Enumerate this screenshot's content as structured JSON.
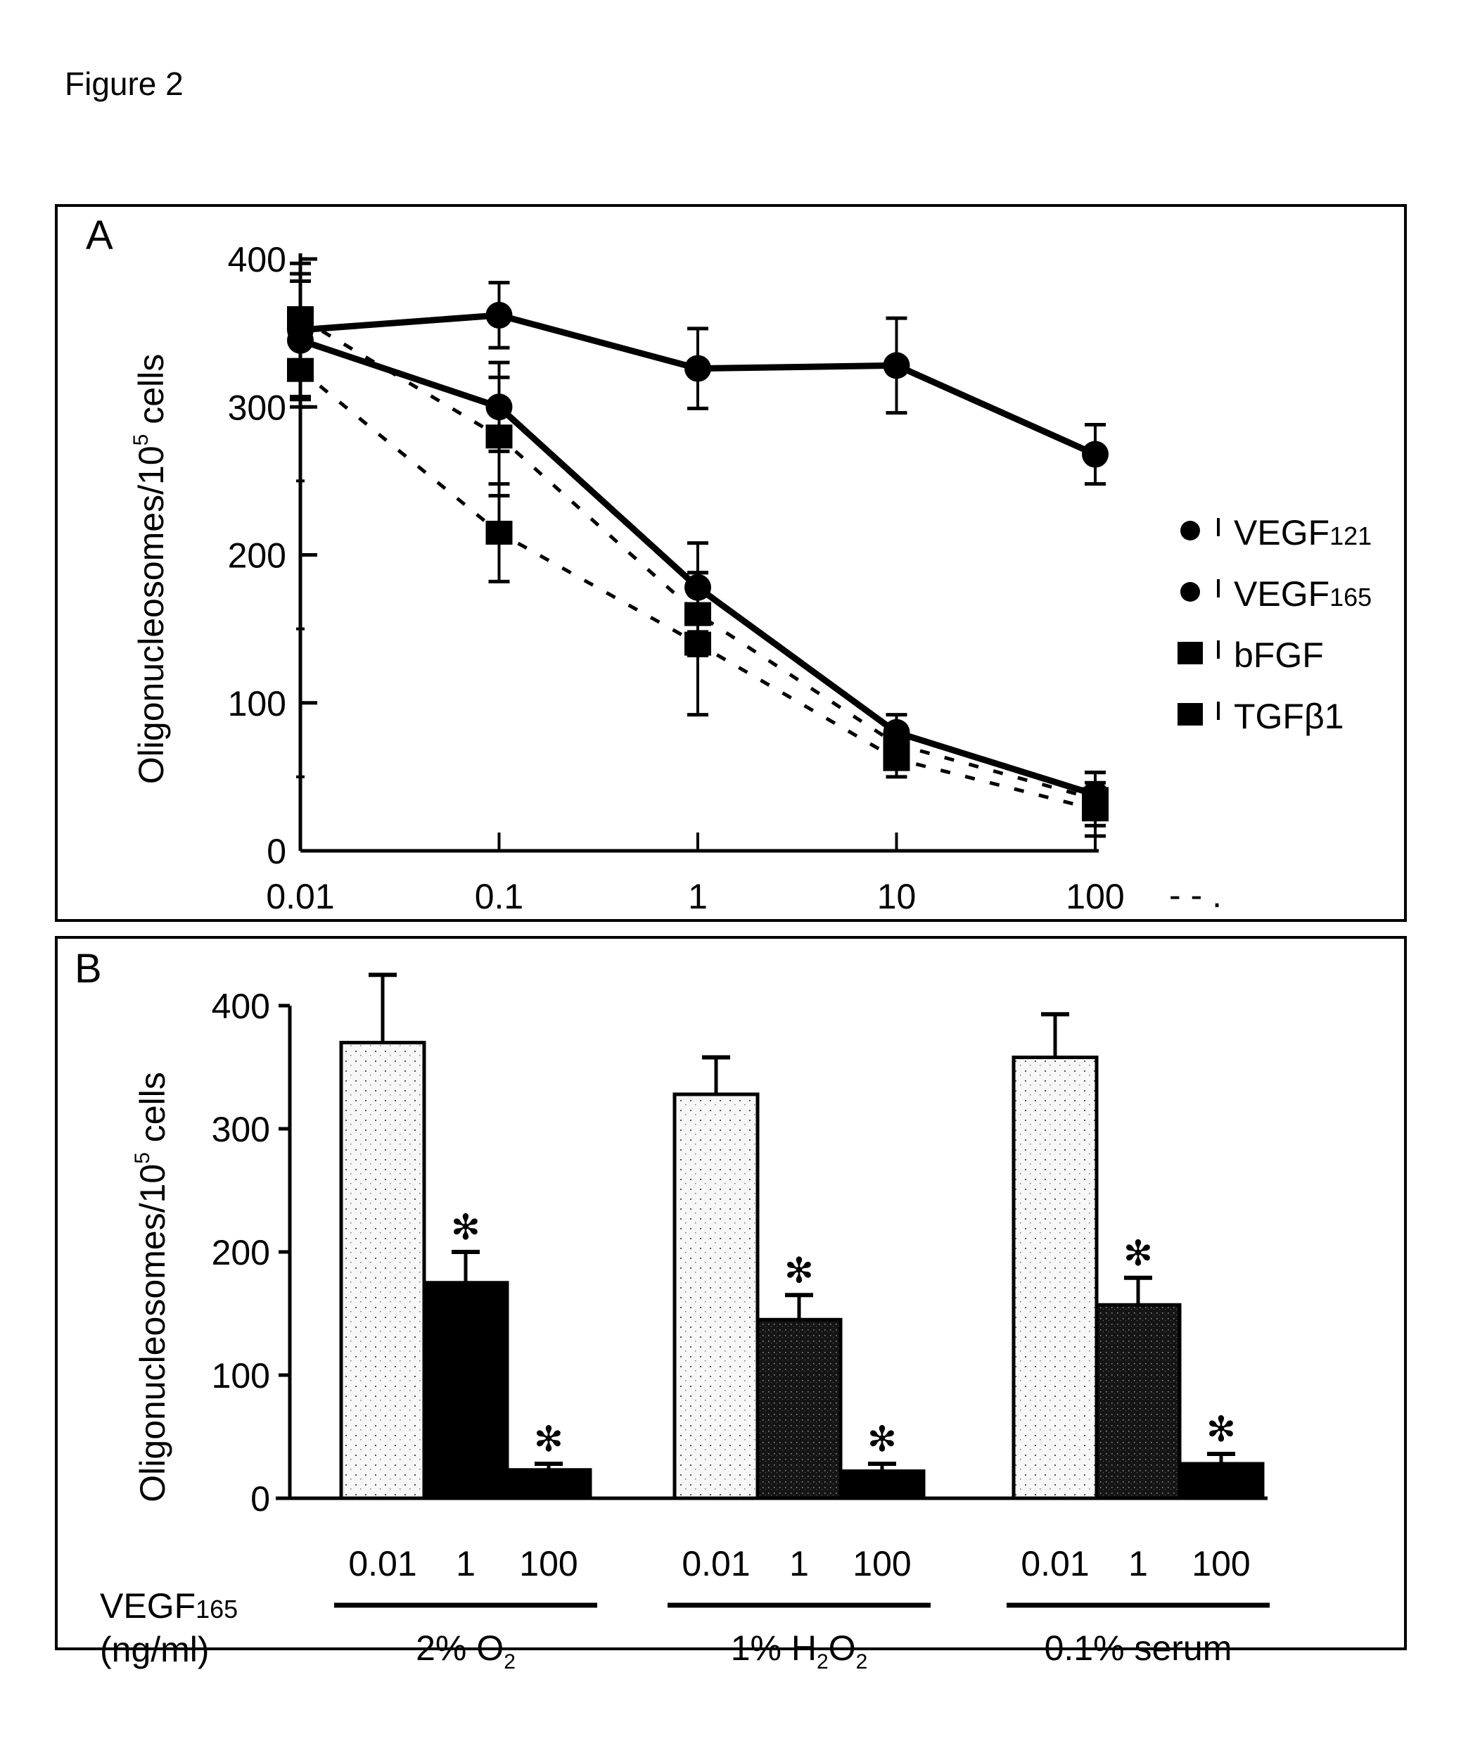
{
  "figure": {
    "title": "Figure 2"
  },
  "chart_data": [
    {
      "panel": "A",
      "type": "line",
      "title": "",
      "xlabel": "",
      "ylabel": "Oligonucleosomes/10^5 cells",
      "ylabel_parts": {
        "base": "Oligonucleosomes/10",
        "sup": "5",
        "tail": " cells"
      },
      "xscale": "log",
      "x": [
        0.01,
        0.1,
        1,
        10,
        100
      ],
      "x_tick_labels": [
        "0.01",
        "0.1",
        "1",
        "10",
        "100"
      ],
      "ylim": [
        0,
        400
      ],
      "y_ticks": [
        0,
        100,
        200,
        300,
        400
      ],
      "grid": false,
      "legend_position": "right",
      "series": [
        {
          "name": "VEGF121",
          "label_base": "VEGF",
          "label_sub": "121",
          "marker": "circle",
          "line": "solid",
          "values": [
            352,
            362,
            326,
            328,
            268
          ],
          "err": [
            45,
            22,
            27,
            32,
            20
          ]
        },
        {
          "name": "VEGF165",
          "label_base": "VEGF",
          "label_sub": "165",
          "marker": "circle",
          "line": "solid",
          "values": [
            345,
            300,
            178,
            80,
            38
          ],
          "err": [
            40,
            30,
            30,
            12,
            15
          ]
        },
        {
          "name": "bFGF",
          "label_base": "bFGF",
          "label_sub": "",
          "marker": "square",
          "line": "dashed",
          "values": [
            360,
            280,
            160,
            72,
            35
          ],
          "err": [
            30,
            40,
            28,
            12,
            18
          ]
        },
        {
          "name": "TGFβ1",
          "label_base": "TGFβ1",
          "label_sub": "",
          "marker": "square",
          "line": "dashed",
          "values": [
            325,
            215,
            140,
            62,
            28
          ],
          "err": [
            25,
            33,
            48,
            12,
            18
          ]
        }
      ],
      "stray_marks": "- - ."
    },
    {
      "panel": "B",
      "type": "bar",
      "title": "",
      "ylabel": "Oligonucleosomes/10^5 cells",
      "ylabel_parts": {
        "base": "Oligonucleosomes/10",
        "sup": "5",
        "tail": " cells"
      },
      "ylim": [
        0,
        400
      ],
      "y_ticks": [
        0,
        100,
        200,
        300,
        400
      ],
      "grid": false,
      "x_row_label": [
        "VEGF165",
        "(ng/ml)"
      ],
      "x_row_label_parts": {
        "base": "VEGF",
        "sub": "165",
        "unit": "(ng/ml)"
      },
      "groups": [
        {
          "name": "2% O2",
          "label_base": "2% O",
          "label_sub": "2",
          "label_tail": "",
          "bars": [
            {
              "dose": "0.01",
              "value": 370,
              "err": 55,
              "significant": false,
              "fill": "light"
            },
            {
              "dose": "1",
              "value": 175,
              "err": 25,
              "significant": true,
              "fill": "black"
            },
            {
              "dose": "100",
              "value": 23,
              "err": 5,
              "significant": true,
              "fill": "black"
            }
          ]
        },
        {
          "name": "1% H2O2",
          "label_base": "1% H",
          "label_sub": "2",
          "label_tail": "O",
          "label_sub2": "2",
          "bars": [
            {
              "dose": "0.01",
              "value": 328,
              "err": 30,
              "significant": false,
              "fill": "light"
            },
            {
              "dose": "1",
              "value": 145,
              "err": 20,
              "significant": true,
              "fill": "dark"
            },
            {
              "dose": "100",
              "value": 22,
              "err": 6,
              "significant": true,
              "fill": "black"
            }
          ]
        },
        {
          "name": "0.1% serum",
          "label_base": "0.1% serum",
          "label_sub": "",
          "label_tail": "",
          "bars": [
            {
              "dose": "0.01",
              "value": 358,
              "err": 35,
              "significant": false,
              "fill": "light"
            },
            {
              "dose": "1",
              "value": 157,
              "err": 22,
              "significant": true,
              "fill": "dark"
            },
            {
              "dose": "100",
              "value": 28,
              "err": 8,
              "significant": true,
              "fill": "black"
            }
          ]
        }
      ],
      "significance_marker": "✻"
    }
  ]
}
